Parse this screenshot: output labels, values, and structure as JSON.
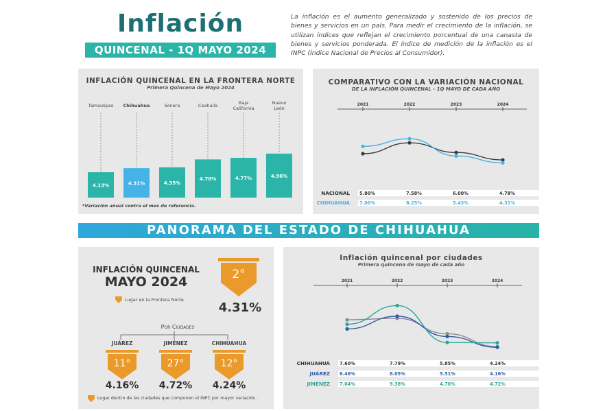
{
  "header": {
    "title": "Inflación",
    "subtitle": "QUINCENAL - 1Q MAYO 2024",
    "intro": "La inflación es el aumento generalizado y sostenido de los precios de bienes y servicios en un país. Para medir el crecimiento de la inflación, se utilizan índices que reflejan el crecimiento porcentual de una canasta de bienes y servicios ponderada. El índice de medición de la inflación es el INPC (Índice Nacional de Precios al Consumidor)."
  },
  "colors": {
    "teal": "#2bb5a8",
    "blue": "#45b3e7",
    "dark": "#3a3a3a",
    "orange": "#ea9a2a",
    "navy": "#2f5aa8",
    "green": "#2aa89a"
  },
  "frontera": {
    "title": "Inflación quincenal en la frontera norte",
    "subtitle": "Primera Quincena de Mayo 2024",
    "footnote": "*Variación anual contra el mes de referencia."
  },
  "nacional": {
    "title": "Comparativo con la variación nacional",
    "subtitle": "de la inflación quincenal - 1Q mayo de cada año"
  },
  "banner": "PANORAMA DEL ESTADO DE CHIHUAHUA",
  "estado": {
    "title_line1": "INFLACIÓN QUINCENAL",
    "title_line2": "MAYO 2024",
    "rank": "2°",
    "rank_label": "Lugar en la Frontera Norte",
    "value": "4.31%",
    "por_ciudades": "Por Ciudades",
    "cities": [
      {
        "name": "Juárez",
        "rank": "11°",
        "value": "4.16%"
      },
      {
        "name": "Jiménez",
        "rank": "27°",
        "value": "4.72%"
      },
      {
        "name": "Chihuahua",
        "rank": "12°",
        "value": "4.24%"
      }
    ],
    "footnote": "Lugar dentro de las ciudades que componen el INPC por mayor variación."
  },
  "ciudades": {
    "title": "Inflación quincenal por ciudades",
    "subtitle": "Primera quincena de mayo de cada año"
  },
  "chart_data": [
    {
      "type": "bar",
      "title": "Inflación quincenal en la frontera norte",
      "subtitle": "Primera Quincena de Mayo 2024",
      "categories": [
        "Tamaulipas",
        "Chihuahua",
        "Sonora",
        "Coahuila",
        "Baja California",
        "Nuevo León"
      ],
      "values": [
        4.13,
        4.31,
        4.35,
        4.7,
        4.77,
        4.96
      ],
      "labels": [
        "4.13%",
        "4.31%",
        "4.35%",
        "4.70%",
        "4.77%",
        "4.96%"
      ],
      "highlight": "Chihuahua"
    },
    {
      "type": "line",
      "title": "Comparativo con la variación nacional",
      "x": [
        "2021",
        "2022",
        "2023",
        "2024"
      ],
      "series": [
        {
          "name": "Nacional",
          "values": [
            5.8,
            7.58,
            6.0,
            4.78
          ],
          "labels": [
            "5.80%",
            "7.58%",
            "6.00%",
            "4.78%"
          ],
          "color": "#3a3a3a"
        },
        {
          "name": "Chihuahua",
          "values": [
            7.0,
            8.25,
            5.43,
            4.31
          ],
          "labels": [
            "7.00%",
            "8.25%",
            "5.43%",
            "4.31%"
          ],
          "color": "#45b3e7"
        }
      ]
    },
    {
      "type": "line",
      "title": "Inflación quincenal por ciudades",
      "x": [
        "2021",
        "2022",
        "2023",
        "2024"
      ],
      "series": [
        {
          "name": "Chihuahua",
          "values": [
            7.6,
            7.79,
            5.85,
            4.24
          ],
          "labels": [
            "7.60%",
            "7.79%",
            "5.85%",
            "4.24%"
          ],
          "color": "#8a8a9a"
        },
        {
          "name": "Juárez",
          "values": [
            6.46,
            8.05,
            5.51,
            4.16
          ],
          "labels": [
            "6.46%",
            "8.05%",
            "5.51%",
            "4.16%"
          ],
          "color": "#2f5aa8"
        },
        {
          "name": "Jiménez",
          "values": [
            7.04,
            9.38,
            4.76,
            4.72
          ],
          "labels": [
            "7.04%",
            "9.38%",
            "4.76%",
            "4.72%"
          ],
          "color": "#2aa89a"
        }
      ]
    }
  ]
}
